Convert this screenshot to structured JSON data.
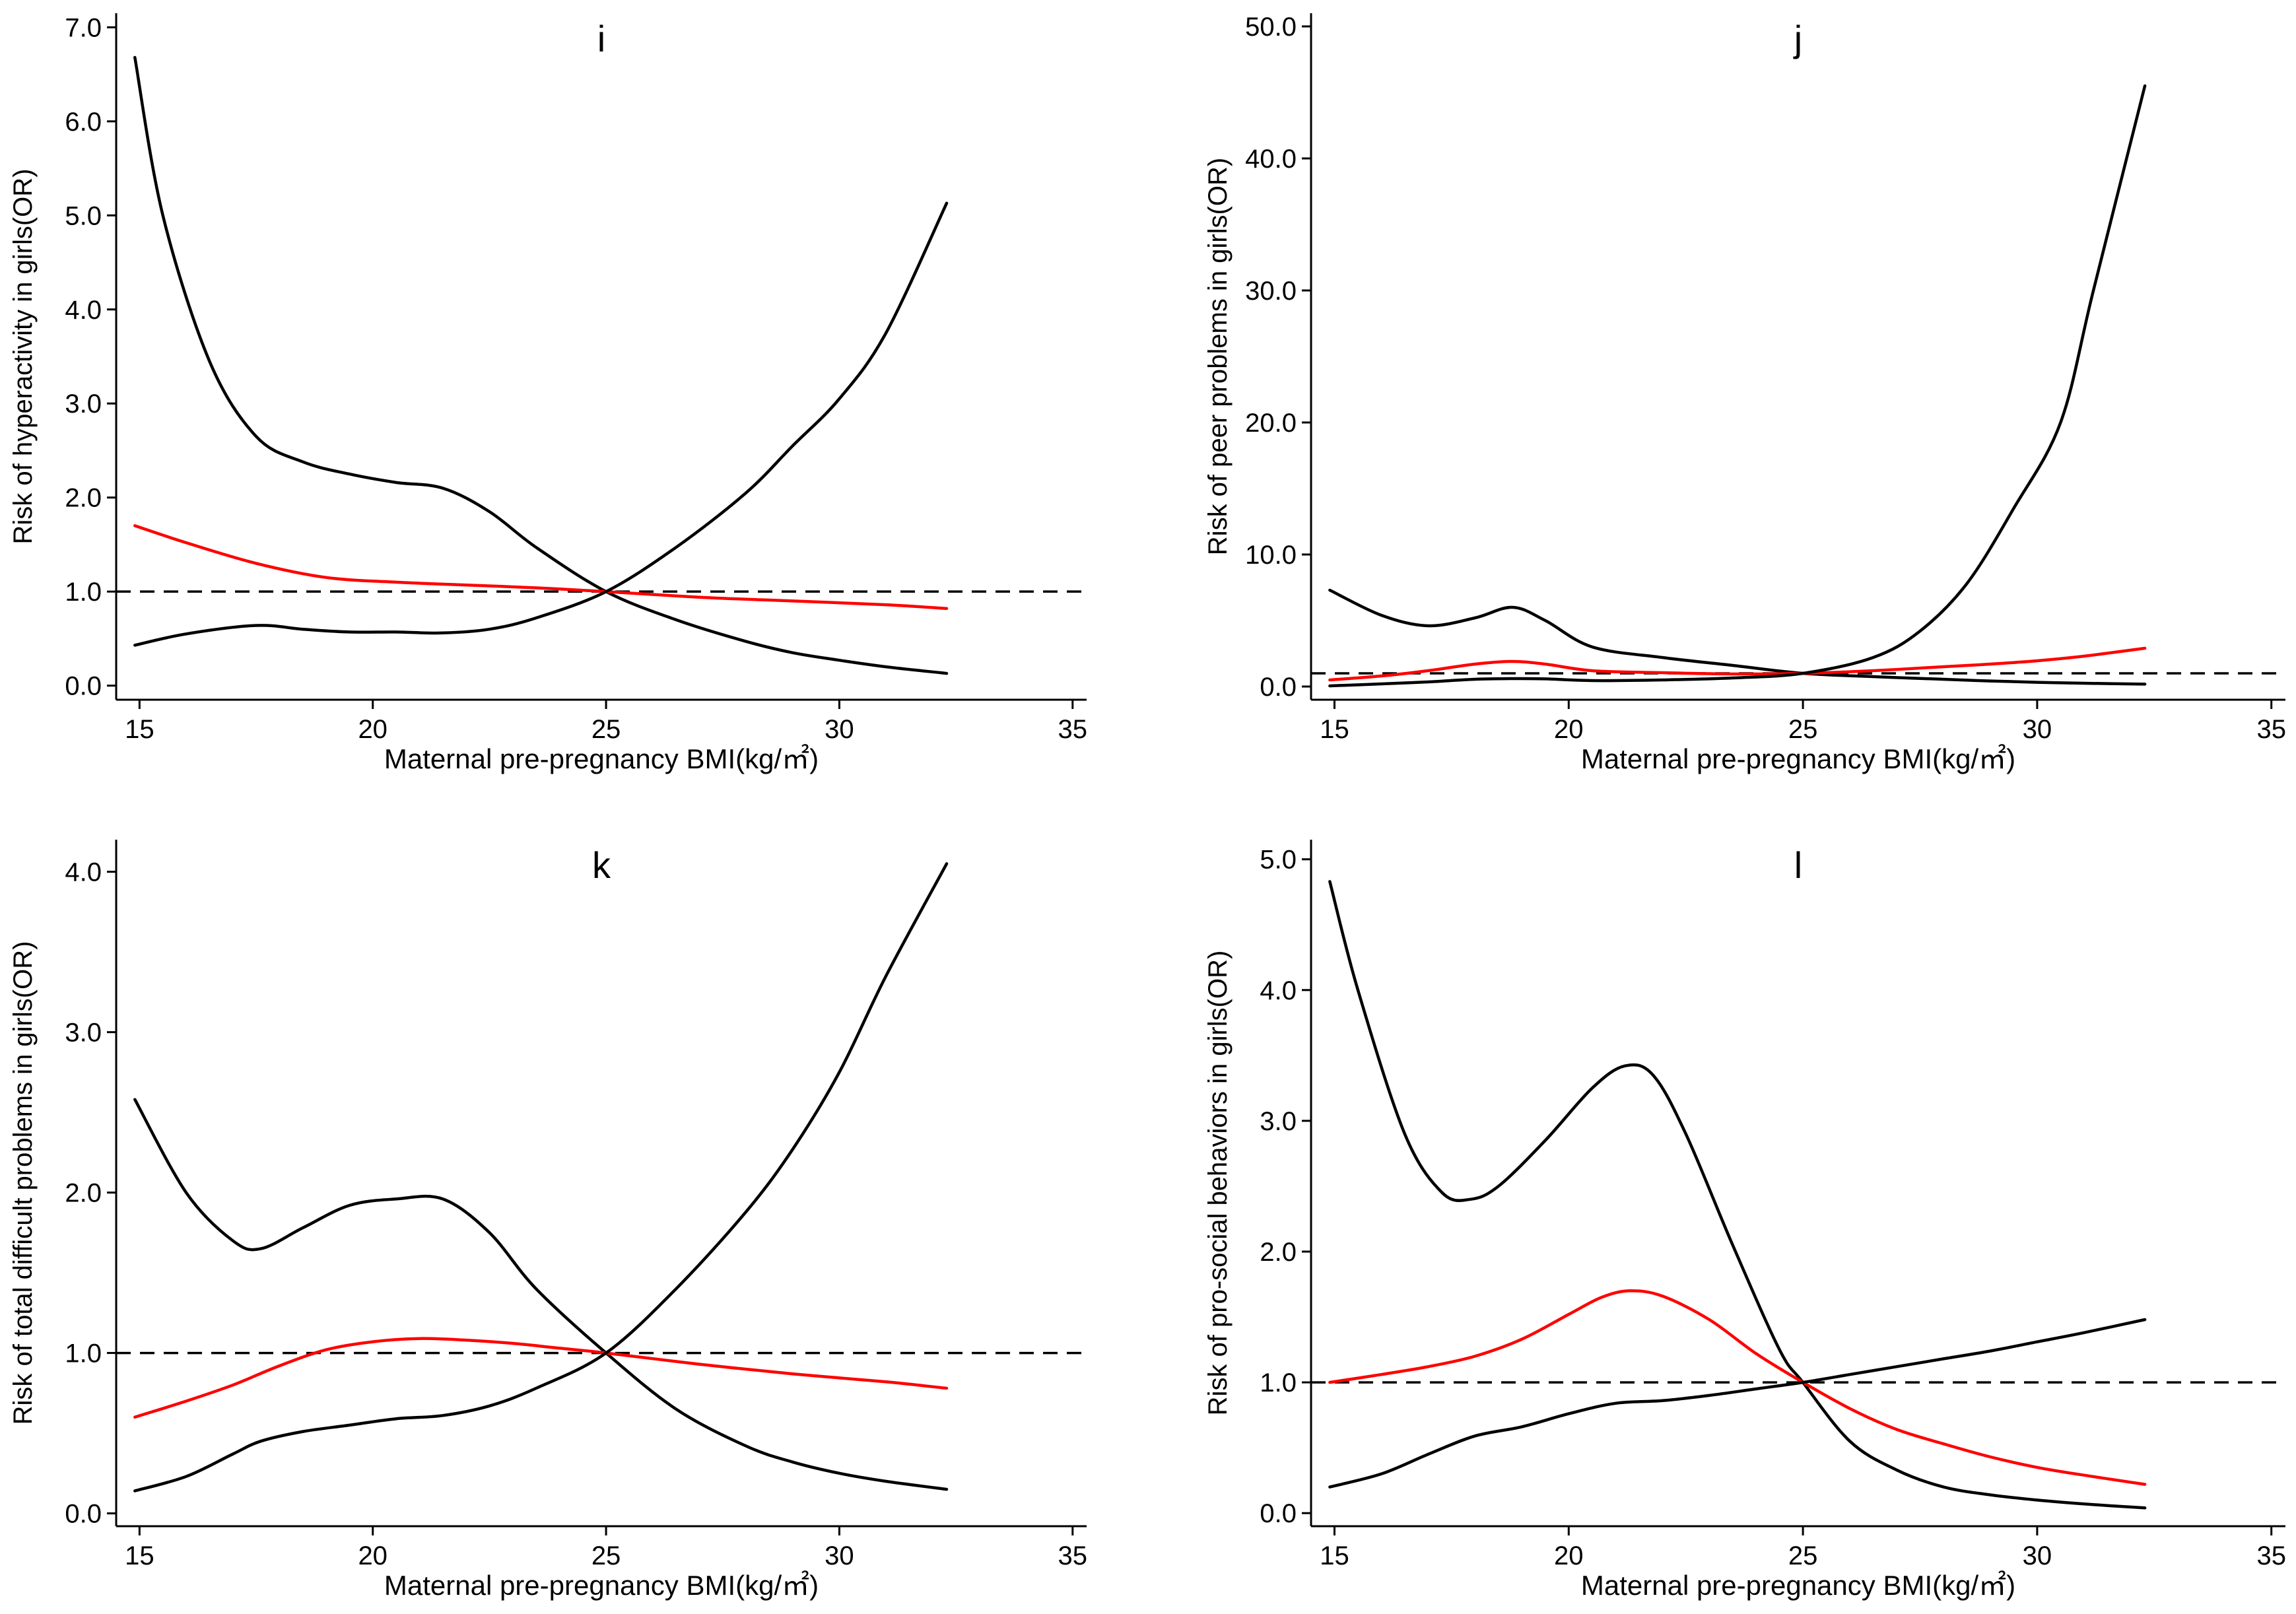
{
  "chart_data": [
    {
      "type": "line",
      "panel_label": "i",
      "xlabel": "Maternal pre-pregnancy BMI(kg/㎡)",
      "ylabel": "Risk of hyperactivity in girls(OR)",
      "xlim": [
        14.5,
        35.3
      ],
      "ylim": [
        -0.15,
        7.15
      ],
      "xticks": [
        15,
        20,
        25,
        30,
        35
      ],
      "xtick_labels": [
        "15",
        "20",
        "25",
        "30",
        "35"
      ],
      "yticks": [
        0,
        1,
        2,
        3,
        4,
        5,
        6,
        7
      ],
      "ytick_labels": [
        "0.0",
        "1.0",
        "2.0",
        "3.0",
        "4.0",
        "5.0",
        "6.0",
        "7.0"
      ],
      "reference_line": 1.0,
      "series": [
        {
          "role": "upper_ci",
          "color": "#000000",
          "x": [
            14.9,
            15.5,
            16.5,
            17.5,
            18.5,
            19.5,
            20.5,
            21.5,
            22.5,
            23.5,
            25,
            26.5,
            28,
            29,
            30,
            31,
            32.3
          ],
          "y": [
            6.68,
            5.0,
            3.45,
            2.65,
            2.38,
            2.25,
            2.16,
            2.1,
            1.85,
            1.47,
            1.0,
            0.7,
            0.47,
            0.35,
            0.27,
            0.2,
            0.13
          ]
        },
        {
          "role": "estimate",
          "color": "#ff0000",
          "x": [
            14.9,
            16,
            17.5,
            19,
            20.5,
            22,
            23.5,
            25,
            27,
            29,
            31,
            32.3
          ],
          "y": [
            1.7,
            1.52,
            1.3,
            1.15,
            1.1,
            1.07,
            1.04,
            1.0,
            0.94,
            0.9,
            0.86,
            0.82
          ]
        },
        {
          "role": "lower_ci",
          "color": "#000000",
          "x": [
            14.9,
            16,
            17.5,
            18.5,
            19.5,
            20.5,
            21.5,
            22.5,
            23.5,
            25,
            26.5,
            28,
            29,
            30,
            31,
            32.3
          ],
          "y": [
            0.43,
            0.55,
            0.64,
            0.6,
            0.57,
            0.57,
            0.56,
            0.6,
            0.72,
            1.0,
            1.47,
            2.05,
            2.55,
            3.05,
            3.75,
            5.13
          ]
        }
      ]
    },
    {
      "type": "line",
      "panel_label": "j",
      "xlabel": "Maternal pre-pregnancy BMI(kg/㎡)",
      "ylabel": "Risk of peer problems in girls(OR)",
      "xlim": [
        14.5,
        35.3
      ],
      "ylim": [
        -1.0,
        51.0
      ],
      "xticks": [
        15,
        20,
        25,
        30,
        35
      ],
      "xtick_labels": [
        "15",
        "20",
        "25",
        "30",
        "35"
      ],
      "yticks": [
        0,
        10,
        20,
        30,
        40,
        50
      ],
      "ytick_labels": [
        "0.0",
        "10.0",
        "20.0",
        "30.0",
        "40.0",
        "50.0"
      ],
      "reference_line": 1.0,
      "series": [
        {
          "role": "upper_ci",
          "color": "#000000",
          "x": [
            14.9,
            16,
            17,
            18,
            18.8,
            19.5,
            20.5,
            22,
            23.5,
            25,
            26.5,
            28,
            29,
            30,
            31,
            32.3
          ],
          "y": [
            7.3,
            5.4,
            4.6,
            5.2,
            6.0,
            5.0,
            3.0,
            2.2,
            1.6,
            1.0,
            0.75,
            0.55,
            0.42,
            0.32,
            0.25,
            0.18
          ]
        },
        {
          "role": "estimate",
          "color": "#ff0000",
          "x": [
            14.9,
            16,
            17,
            18,
            18.8,
            19.5,
            20.5,
            22,
            23.5,
            25,
            26.5,
            28,
            29,
            30,
            31,
            32.3
          ],
          "y": [
            0.5,
            0.8,
            1.2,
            1.7,
            1.9,
            1.7,
            1.2,
            1.05,
            0.95,
            1.0,
            1.2,
            1.5,
            1.7,
            1.95,
            2.3,
            2.9
          ]
        },
        {
          "role": "lower_ci",
          "color": "#000000",
          "x": [
            14.9,
            16,
            17,
            18,
            18.8,
            19.5,
            20.5,
            22,
            23.5,
            25,
            26.5,
            27.5,
            28.5,
            29.5,
            30.5,
            31.2,
            32.3
          ],
          "y": [
            0.05,
            0.2,
            0.35,
            0.55,
            0.6,
            0.58,
            0.45,
            0.5,
            0.65,
            1.0,
            2.2,
            4.2,
            7.8,
            13.5,
            20.0,
            30.0,
            45.5
          ]
        }
      ]
    },
    {
      "type": "line",
      "panel_label": "k",
      "xlabel": "Maternal pre-pregnancy BMI(kg/㎡)",
      "ylabel": "Risk of total difficult problems in girls(OR)",
      "xlim": [
        14.5,
        35.3
      ],
      "ylim": [
        -0.08,
        4.2
      ],
      "xticks": [
        15,
        20,
        25,
        30,
        35
      ],
      "xtick_labels": [
        "15",
        "20",
        "25",
        "30",
        "35"
      ],
      "yticks": [
        0,
        1,
        2,
        3,
        4
      ],
      "ytick_labels": [
        "0.0",
        "1.0",
        "2.0",
        "3.0",
        "4.0"
      ],
      "reference_line": 1.0,
      "series": [
        {
          "role": "upper_ci",
          "color": "#000000",
          "x": [
            14.9,
            16,
            17,
            17.6,
            18.5,
            19.5,
            20.5,
            21.5,
            22.5,
            23.5,
            25,
            26.5,
            28,
            29,
            30,
            31,
            32.3
          ],
          "y": [
            2.58,
            2.0,
            1.7,
            1.65,
            1.78,
            1.92,
            1.96,
            1.96,
            1.75,
            1.4,
            1.0,
            0.65,
            0.42,
            0.32,
            0.25,
            0.2,
            0.15
          ]
        },
        {
          "role": "estimate",
          "color": "#ff0000",
          "x": [
            14.9,
            16,
            17,
            18,
            19,
            20,
            21,
            22,
            23,
            24,
            25,
            27,
            29,
            31,
            32.3
          ],
          "y": [
            0.6,
            0.7,
            0.8,
            0.92,
            1.02,
            1.07,
            1.09,
            1.08,
            1.06,
            1.03,
            1.0,
            0.93,
            0.87,
            0.82,
            0.78
          ]
        },
        {
          "role": "lower_ci",
          "color": "#000000",
          "x": [
            14.9,
            16,
            17,
            17.6,
            18.5,
            19.5,
            20.5,
            21.5,
            22.5,
            23.5,
            25,
            26.5,
            28,
            29,
            30,
            31,
            32.3
          ],
          "y": [
            0.14,
            0.23,
            0.37,
            0.45,
            0.51,
            0.55,
            0.59,
            0.61,
            0.67,
            0.78,
            1.0,
            1.4,
            1.88,
            2.27,
            2.75,
            3.35,
            4.05
          ]
        }
      ]
    },
    {
      "type": "line",
      "panel_label": "l",
      "xlabel": "Maternal pre-pregnancy BMI(kg/㎡)",
      "ylabel": "Risk of pro-social behaviors in girls(OR)",
      "xlim": [
        14.5,
        35.3
      ],
      "ylim": [
        -0.1,
        5.15
      ],
      "xticks": [
        15,
        20,
        25,
        30,
        35
      ],
      "xtick_labels": [
        "15",
        "20",
        "25",
        "30",
        "35"
      ],
      "yticks": [
        0,
        1,
        2,
        3,
        4,
        5
      ],
      "ytick_labels": [
        "0.0",
        "1.0",
        "2.0",
        "3.0",
        "4.0",
        "5.0"
      ],
      "reference_line": 1.0,
      "series": [
        {
          "role": "upper_ci",
          "color": "#000000",
          "x": [
            14.9,
            15.5,
            16.5,
            17.3,
            17.9,
            18.5,
            19.5,
            20.5,
            21.2,
            21.8,
            22.5,
            23.5,
            24.5,
            25,
            26,
            27,
            28,
            29,
            30,
            31,
            32.3
          ],
          "y": [
            4.83,
            4.0,
            2.9,
            2.45,
            2.4,
            2.5,
            2.85,
            3.25,
            3.42,
            3.35,
            2.9,
            2.05,
            1.25,
            1.0,
            0.55,
            0.33,
            0.2,
            0.14,
            0.1,
            0.07,
            0.04
          ]
        },
        {
          "role": "estimate",
          "color": "#ff0000",
          "x": [
            14.9,
            16,
            17,
            18,
            19,
            20,
            20.7,
            21.3,
            22,
            23,
            24,
            25,
            26,
            27,
            28,
            29,
            30,
            31,
            32.3
          ],
          "y": [
            1.0,
            1.06,
            1.12,
            1.2,
            1.33,
            1.52,
            1.65,
            1.7,
            1.66,
            1.48,
            1.22,
            1.0,
            0.8,
            0.64,
            0.53,
            0.43,
            0.35,
            0.29,
            0.22
          ]
        },
        {
          "role": "lower_ci",
          "color": "#000000",
          "x": [
            14.9,
            16,
            17,
            18,
            19,
            20,
            21,
            22,
            23,
            24,
            25,
            26,
            27,
            28,
            29,
            30,
            31,
            32.3
          ],
          "y": [
            0.2,
            0.3,
            0.45,
            0.59,
            0.66,
            0.76,
            0.84,
            0.86,
            0.9,
            0.95,
            1.0,
            1.06,
            1.12,
            1.18,
            1.24,
            1.31,
            1.38,
            1.48
          ]
        }
      ]
    }
  ]
}
